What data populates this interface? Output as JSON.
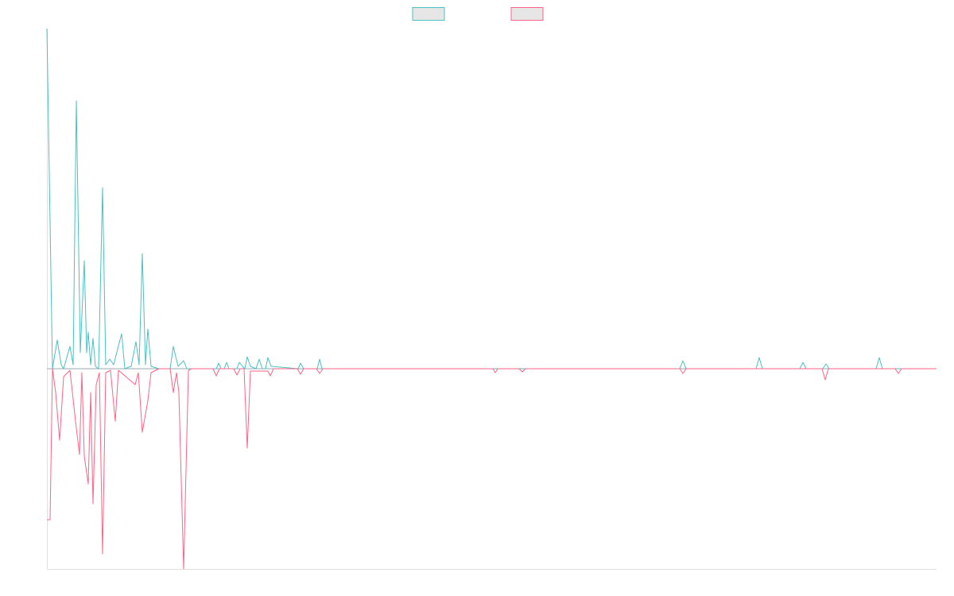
{
  "chart_data": {
    "type": "line",
    "xlim": [
      0,
      1119
    ],
    "ylim": [
      -252,
      428
    ],
    "series": [
      {
        "color": "#4bc0c0",
        "x": [
          0,
          7,
          13,
          18,
          21,
          29,
          33,
          37,
          42,
          47,
          50,
          52,
          55,
          58,
          61,
          65,
          70,
          74,
          79,
          84,
          89,
          94,
          98,
          106,
          112,
          116,
          120,
          124,
          127,
          131,
          141,
          155,
          159,
          165,
          172,
          176,
          213,
          216,
          219,
          223,
          226,
          229,
          239,
          242,
          246,
          249,
          252,
          256,
          263,
          267,
          271,
          275,
          278,
          282,
          316,
          319,
          323,
          340,
          343,
          346,
          796,
          800,
          804,
          892,
          896,
          900,
          947,
          951,
          955,
          976,
          980,
          984,
          1043,
          1047,
          1051,
          1119
        ],
        "values": [
          428,
          0,
          36,
          5,
          0,
          28,
          5,
          337,
          20,
          136,
          20,
          46,
          5,
          38,
          3,
          0,
          228,
          5,
          12,
          5,
          25,
          44,
          0,
          3,
          34,
          5,
          145,
          5,
          50,
          3,
          0,
          0,
          28,
          3,
          10,
          0,
          0,
          7,
          0,
          0,
          8,
          0,
          0,
          8,
          3,
          0,
          15,
          3,
          0,
          12,
          0,
          0,
          14,
          3,
          0,
          7,
          0,
          0,
          12,
          0,
          0,
          10,
          0,
          0,
          14,
          0,
          0,
          8,
          0,
          0,
          6,
          0,
          0,
          14,
          0,
          0
        ]
      },
      {
        "color": "#ff6384",
        "x": [
          0,
          4,
          7,
          11,
          16,
          21,
          29,
          37,
          41,
          44,
          47,
          52,
          55,
          58,
          62,
          66,
          70,
          74,
          80,
          86,
          90,
          111,
          115,
          120,
          127,
          131,
          141,
          155,
          159,
          163,
          166,
          172,
          178,
          182,
          209,
          213,
          217,
          235,
          239,
          243,
          248,
          252,
          256,
          278,
          281,
          285,
          315,
          319,
          323,
          339,
          343,
          347,
          561,
          564,
          567,
          594,
          598,
          602,
          796,
          800,
          804,
          975,
          979,
          983,
          1067,
          1071,
          1075,
          1119
        ],
        "values": [
          -190,
          -190,
          0,
          -30,
          -90,
          -10,
          -2,
          -75,
          -108,
          -5,
          -110,
          -145,
          -30,
          -170,
          -20,
          -5,
          -233,
          -5,
          -2,
          -66,
          -2,
          -20,
          -5,
          -80,
          -40,
          -5,
          0,
          0,
          -30,
          -5,
          -30,
          -252,
          -2,
          0,
          0,
          -9,
          0,
          0,
          -8,
          0,
          0,
          -100,
          -3,
          -3,
          -9,
          0,
          0,
          -7,
          0,
          0,
          -6,
          0,
          0,
          -5,
          0,
          0,
          -4,
          0,
          0,
          -6,
          0,
          0,
          -14,
          0,
          0,
          -6,
          0,
          0
        ]
      }
    ]
  }
}
